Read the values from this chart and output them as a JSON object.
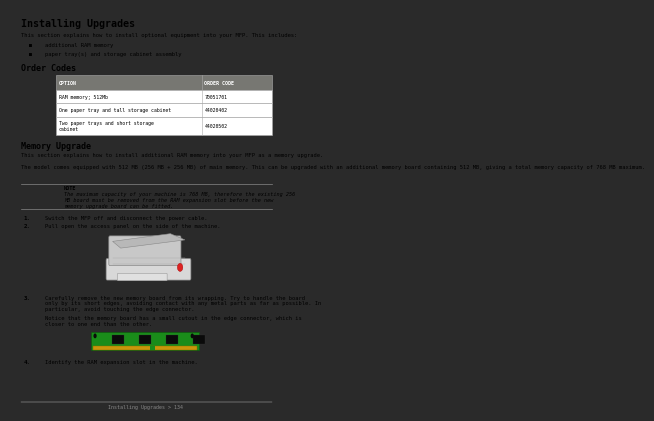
{
  "title": "Installing Upgrades",
  "bg_color": "#ffffff",
  "text_color": "#000000",
  "page_bg": "#2a2a2a",
  "intro_text": "This section explains how to install optional equipment into your MFP. This includes:",
  "bullets": [
    "additional RAM memory",
    "paper tray(s) and storage cabinet assembly"
  ],
  "order_codes_title": "Order Codes",
  "table_header": [
    "OPTION",
    "ORDER CODE"
  ],
  "table_header_bg": "#777772",
  "table_header_color": "#ffffff",
  "table_rows": [
    [
      "RAM memory; 512Mb",
      "70051701"
    ],
    [
      "One paper tray and tall storage cabinet",
      "44020402"
    ],
    [
      "Two paper trays and short storage\ncabinet",
      "44020502"
    ]
  ],
  "memory_title": "Memory Upgrade",
  "memory_intro": "This section explains how to install additional RAM memory into your MFP as a memory upgrade.",
  "memory_body": "The model comes equipped with 512 MB (256 MB + 256 MB) of main memory. This can be upgraded with an additional memory board containing 512 MB, giving a total memory capacity of 768 MB maximum.",
  "note_title": "NOTE",
  "note_body": "The maximum capacity of your machine is 768 MB, therefore the existing 256\nMB board must be removed from the RAM expansion slot before the new\nmemory upgrade board can be fitted.",
  "step1": "Switch the MFP off and disconnect the power cable.",
  "step2": "Pull open the access panel on the side of the machine.",
  "step3a": "Carefully remove the new memory board from its wrapping. Try to handle the board\nonly by its short edges, avoiding contact with any metal parts as far as possible. In\nparticular, avoid touching the edge connector.",
  "step3b": "Notice that the memory board has a small cutout in the edge connector, which is\ncloser to one end than the other.",
  "step4": "Identify the RAM expansion slot in the machine.",
  "footer_text": "Installing Upgrades > 134",
  "footer_color": "#888888",
  "line_color": "#999999",
  "border_color": "#aaaaaa",
  "note_line_color": "#888888"
}
